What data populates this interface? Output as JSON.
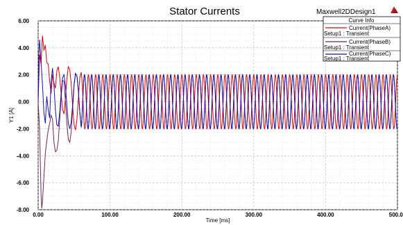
{
  "chart_data": {
    "type": "line",
    "title": "Stator Currents",
    "project_name": "Maxwell2DDesign1",
    "xlabel": "Time [ms]",
    "ylabel": "Y1 [A]",
    "xlim": [
      0,
      500
    ],
    "ylim": [
      -8,
      6
    ],
    "x_ticks": [
      "0.00",
      "100.00",
      "200.00",
      "300.00",
      "400.00",
      "500.00"
    ],
    "y_ticks": [
      "6.00",
      "4.00",
      "2.00",
      "0.00",
      "-2.00",
      "-4.00",
      "-6.00",
      "-8.00"
    ],
    "grid": true,
    "legend_position": "top-right",
    "legend_header": "Curve Info",
    "steady_state_amplitude": 2.0,
    "electrical_frequency_hz": 100,
    "series": [
      {
        "name": "Current(PhaseA)",
        "setup": "Setup1 : Transient",
        "color": "#e00000",
        "phase_deg": 0,
        "startup_points": [
          [
            0,
            0
          ],
          [
            2,
            3.5
          ],
          [
            4,
            2.8
          ],
          [
            6,
            4.9
          ],
          [
            8,
            3.8
          ],
          [
            10,
            4.2
          ],
          [
            12,
            2.9
          ],
          [
            14,
            2.8
          ],
          [
            16,
            1.5
          ],
          [
            18,
            0.6
          ],
          [
            20,
            2.0
          ],
          [
            22,
            1.4
          ],
          [
            24,
            1.0
          ],
          [
            26,
            2.3
          ],
          [
            28,
            2.6
          ],
          [
            30,
            1.8
          ],
          [
            32,
            0.6
          ],
          [
            34,
            -0.6
          ],
          [
            36,
            -0.9
          ],
          [
            38,
            0.3
          ],
          [
            40,
            1.7
          ],
          [
            42,
            2.6
          ],
          [
            44,
            2.4
          ],
          [
            46,
            1.3
          ],
          [
            48,
            -0.3
          ],
          [
            50,
            -1.7
          ],
          [
            52,
            -2.1
          ],
          [
            54,
            -1.3
          ],
          [
            56,
            0.3
          ],
          [
            58,
            1.8
          ],
          [
            60,
            2.2
          ]
        ]
      },
      {
        "name": "Current(PhaseB)",
        "setup": "Setup1 : Transient",
        "color": "#7a1f55",
        "phase_deg": -120,
        "startup_points": [
          [
            0,
            0
          ],
          [
            2,
            -2.0
          ],
          [
            4,
            -6.8
          ],
          [
            5,
            -7.9
          ],
          [
            6,
            -7.4
          ],
          [
            8,
            -5.6
          ],
          [
            10,
            -3.8
          ],
          [
            12,
            -2.9
          ],
          [
            14,
            -2.1
          ],
          [
            16,
            -1.6
          ],
          [
            18,
            -1.0
          ],
          [
            20,
            -1.3
          ],
          [
            22,
            -3.0
          ],
          [
            24,
            -3.7
          ],
          [
            26,
            -3.6
          ],
          [
            28,
            -2.9
          ],
          [
            30,
            -1.3
          ],
          [
            32,
            0.3
          ],
          [
            34,
            1.6
          ],
          [
            36,
            1.5
          ],
          [
            38,
            0.0
          ],
          [
            40,
            -1.6
          ],
          [
            42,
            -2.8
          ],
          [
            44,
            -3.0
          ],
          [
            46,
            -2.2
          ],
          [
            48,
            -0.5
          ],
          [
            50,
            1.2
          ],
          [
            52,
            2.1
          ],
          [
            54,
            1.9
          ],
          [
            56,
            0.8
          ],
          [
            58,
            -0.8
          ],
          [
            60,
            -1.9
          ]
        ]
      },
      {
        "name": "Current(PhaseC)",
        "setup": "Setup1 : Transient",
        "color": "#1010b0",
        "phase_deg": 120,
        "startup_points": [
          [
            0,
            0
          ],
          [
            1,
            3.5
          ],
          [
            2,
            4.6
          ],
          [
            4,
            3.0
          ],
          [
            6,
            1.3
          ],
          [
            8,
            -0.8
          ],
          [
            10,
            -1.6
          ],
          [
            12,
            0.4
          ],
          [
            14,
            -0.6
          ],
          [
            16,
            -1.2
          ],
          [
            18,
            1.5
          ],
          [
            20,
            2.5
          ],
          [
            22,
            1.2
          ],
          [
            24,
            -0.6
          ],
          [
            26,
            -1.7
          ],
          [
            28,
            -1.8
          ],
          [
            30,
            -0.8
          ],
          [
            32,
            0.6
          ],
          [
            34,
            1.8
          ],
          [
            36,
            2.0
          ],
          [
            38,
            1.2
          ],
          [
            40,
            -0.3
          ],
          [
            42,
            -1.6
          ],
          [
            44,
            -2.0
          ],
          [
            46,
            -1.5
          ],
          [
            48,
            -0.2
          ],
          [
            50,
            1.3
          ],
          [
            52,
            2.1
          ],
          [
            54,
            1.9
          ],
          [
            56,
            0.8
          ],
          [
            58,
            -0.8
          ],
          [
            60,
            -1.9
          ]
        ]
      }
    ]
  }
}
